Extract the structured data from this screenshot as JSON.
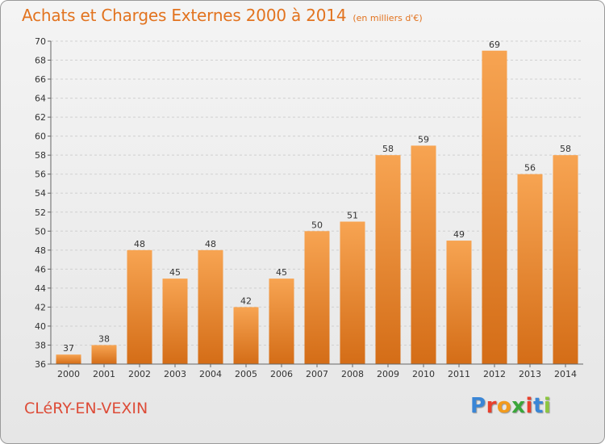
{
  "header": {
    "title": "Achats et Charges Externes 2000 à 2014",
    "unit": "(en milliers d'€)"
  },
  "footer": {
    "commune": "CLéRY-EN-VEXIN",
    "brand": {
      "letters": [
        "P",
        "r",
        "o",
        "x",
        "i",
        "t",
        "i"
      ],
      "colors": [
        "#3a86d6",
        "#e8402d",
        "#f29b1d",
        "#3aa63a",
        "#e8402d",
        "#3a86d6",
        "#8cc63f"
      ]
    }
  },
  "colors": {
    "bar_top": "#f7a452",
    "bar_bottom": "#d46d17",
    "title": "#e2731f",
    "commune": "#dd4c38"
  },
  "chart_data": {
    "type": "bar",
    "categories": [
      "2000",
      "2001",
      "2002",
      "2003",
      "2004",
      "2005",
      "2006",
      "2007",
      "2008",
      "2009",
      "2010",
      "2011",
      "2012",
      "2013",
      "2014"
    ],
    "values": [
      37,
      38,
      48,
      45,
      48,
      42,
      45,
      50,
      51,
      58,
      59,
      49,
      69,
      56,
      58
    ],
    "yticks": [
      36,
      38,
      40,
      42,
      44,
      46,
      48,
      50,
      52,
      54,
      56,
      58,
      60,
      62,
      64,
      66,
      68,
      70
    ],
    "ylim": [
      36,
      70
    ],
    "grid": true
  }
}
